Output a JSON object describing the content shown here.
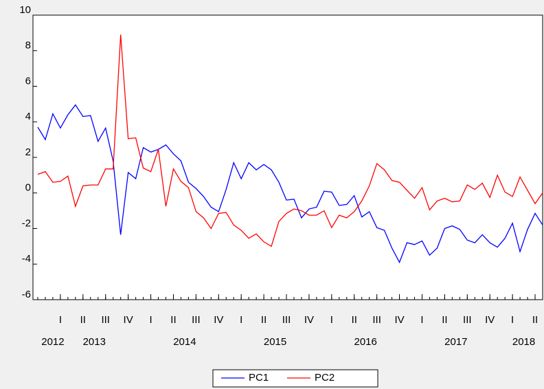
{
  "chart_data": {
    "type": "line",
    "x": [
      0,
      1,
      2,
      3,
      4,
      5,
      6,
      7,
      8,
      9,
      10,
      11,
      12,
      13,
      14,
      15,
      16,
      17,
      18,
      19,
      20,
      21,
      22,
      23,
      24,
      25,
      26,
      27,
      28,
      29,
      30,
      31,
      32,
      33,
      34,
      35,
      36,
      37,
      38,
      39,
      40,
      41,
      42,
      43,
      44,
      45,
      46,
      47,
      48,
      49,
      50,
      51,
      52,
      53,
      54,
      55,
      56,
      57,
      58,
      59,
      60,
      61,
      62,
      63,
      64,
      65,
      66,
      67
    ],
    "xlim": [
      0,
      67
    ],
    "xticks": [
      {
        "value": 3,
        "label": "I"
      },
      {
        "value": 6,
        "label": "II"
      },
      {
        "value": 9,
        "label": "III"
      },
      {
        "value": 12,
        "label": "IV"
      },
      {
        "value": 15,
        "label": "I"
      },
      {
        "value": 18,
        "label": "II"
      },
      {
        "value": 21,
        "label": "III"
      },
      {
        "value": 24,
        "label": "IV"
      },
      {
        "value": 27,
        "label": "I"
      },
      {
        "value": 30,
        "label": "II"
      },
      {
        "value": 33,
        "label": "III"
      },
      {
        "value": 36,
        "label": "IV"
      },
      {
        "value": 39,
        "label": "I"
      },
      {
        "value": 42,
        "label": "II"
      },
      {
        "value": 45,
        "label": "III"
      },
      {
        "value": 48,
        "label": "IV"
      },
      {
        "value": 51,
        "label": "I"
      },
      {
        "value": 54,
        "label": "II"
      },
      {
        "value": 57,
        "label": "III"
      },
      {
        "value": 60,
        "label": "IV"
      },
      {
        "value": 63,
        "label": "I"
      },
      {
        "value": 66,
        "label": "II"
      }
    ],
    "year_labels": [
      {
        "value": 2,
        "label": "2012"
      },
      {
        "value": 7.5,
        "label": "2013"
      },
      {
        "value": 19.5,
        "label": "2014"
      },
      {
        "value": 31.5,
        "label": "2015"
      },
      {
        "value": 43.5,
        "label": "2016"
      },
      {
        "value": 55.5,
        "label": "2017"
      },
      {
        "value": 64.5,
        "label": "2018"
      }
    ],
    "ylim": [
      -6,
      10
    ],
    "yticks": [
      -6,
      -4,
      -2,
      0,
      2,
      4,
      6,
      8,
      10
    ],
    "series": [
      {
        "name": "PC1",
        "color": "#0000ff",
        "values": [
          3.7,
          3.0,
          4.45,
          3.65,
          4.4,
          4.95,
          4.3,
          4.35,
          2.9,
          3.65,
          1.8,
          -2.35,
          1.15,
          0.8,
          2.55,
          2.3,
          2.45,
          2.7,
          2.2,
          1.8,
          0.6,
          0.25,
          -0.2,
          -0.8,
          -1.05,
          0.2,
          1.7,
          0.8,
          1.7,
          1.3,
          1.6,
          1.3,
          0.6,
          -0.4,
          -0.35,
          -1.4,
          -0.9,
          -0.8,
          0.1,
          0.05,
          -0.7,
          -0.65,
          -0.15,
          -1.35,
          -1.05,
          -1.95,
          -2.1,
          -3.1,
          -3.9,
          -2.8,
          -2.9,
          -2.7,
          -3.5,
          -3.1,
          -2.0,
          -1.85,
          -2.05,
          -2.65,
          -2.8,
          -2.35,
          -2.8,
          -3.05,
          -2.55,
          -1.7,
          -3.3,
          -2.05,
          -1.15,
          -1.8
        ]
      },
      {
        "name": "PC2",
        "color": "#ff0000",
        "values": [
          1.05,
          1.2,
          0.6,
          0.65,
          0.95,
          -0.75,
          0.4,
          0.45,
          0.45,
          1.35,
          1.35,
          8.9,
          3.05,
          3.1,
          1.4,
          1.2,
          2.45,
          -0.75,
          1.35,
          0.65,
          0.3,
          -1.05,
          -1.4,
          -2.0,
          -1.15,
          -1.1,
          -1.8,
          -2.1,
          -2.55,
          -2.3,
          -2.75,
          -3.0,
          -1.6,
          -1.15,
          -0.9,
          -1.0,
          -1.25,
          -1.25,
          -1.0,
          -1.95,
          -1.25,
          -1.4,
          -1.05,
          -0.45,
          0.4,
          1.65,
          1.3,
          0.7,
          0.6,
          0.15,
          -0.3,
          0.3,
          -0.95,
          -0.45,
          -0.3,
          -0.5,
          -0.45,
          0.45,
          0.2,
          0.55,
          -0.25,
          1.0,
          0.05,
          -0.2,
          0.9,
          0.15,
          -0.6,
          0.0
        ]
      }
    ]
  }
}
